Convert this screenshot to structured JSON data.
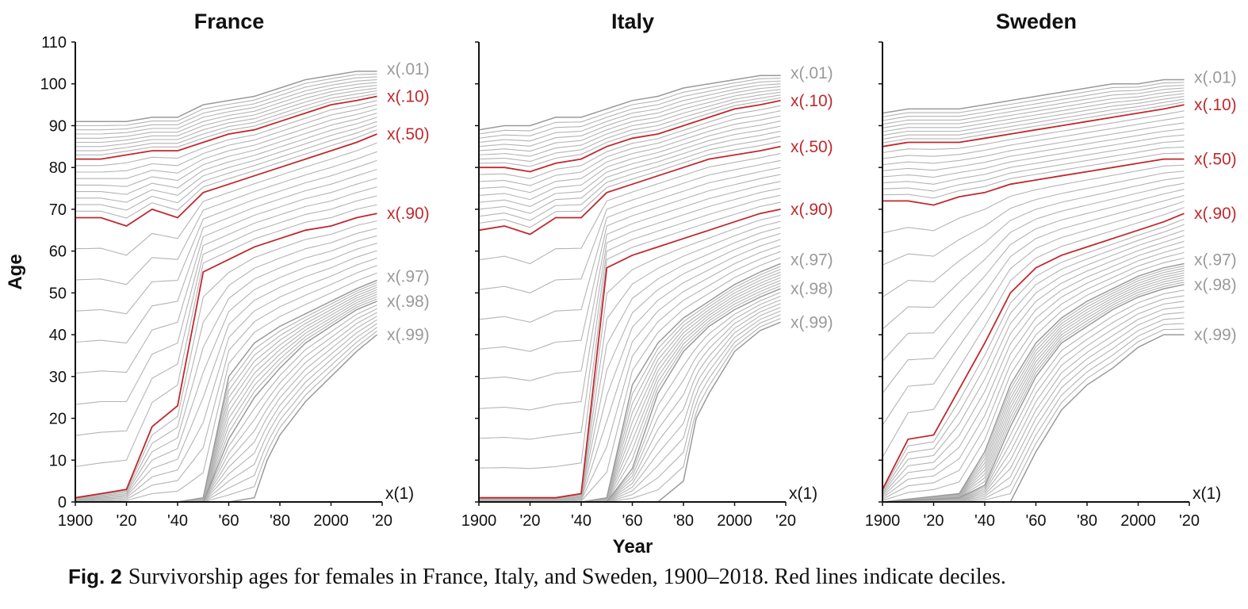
{
  "chart_data": {
    "type": "line",
    "shared": {
      "x_ticks": [
        1900,
        1920,
        1940,
        1960,
        1980,
        2000,
        2020
      ],
      "x_tick_labels": [
        "1900",
        "'20",
        "'40",
        "'60",
        "'80",
        "2000",
        "'20"
      ],
      "y_ticks": [
        0,
        10,
        20,
        30,
        40,
        50,
        60,
        70,
        80,
        90,
        100,
        110
      ],
      "xlim": [
        1900,
        2020
      ],
      "ylim": [
        0,
        110
      ],
      "xlabel": "Year",
      "ylabel": "Age",
      "highlight_color": "#c0282d",
      "base_color": "#9a9a9a"
    },
    "panels": [
      {
        "title": "France",
        "series": [
          {
            "name": "x(.01)",
            "x": [
              1900,
              1910,
              1920,
              1930,
              1940,
              1950,
              1960,
              1970,
              1980,
              1990,
              2000,
              2010,
              2018
            ],
            "y": [
              91,
              91,
              91,
              92,
              92,
              95,
              96,
              97,
              99,
              101,
              102,
              103,
              103
            ]
          },
          {
            "name": "x(.10)",
            "x": [
              1900,
              1910,
              1920,
              1930,
              1940,
              1950,
              1960,
              1970,
              1980,
              1990,
              2000,
              2010,
              2018
            ],
            "y": [
              82,
              82,
              83,
              84,
              84,
              86,
              88,
              89,
              91,
              93,
              95,
              96,
              97
            ]
          },
          {
            "name": "x(.50)",
            "x": [
              1900,
              1910,
              1920,
              1930,
              1940,
              1950,
              1960,
              1970,
              1980,
              1990,
              2000,
              2010,
              2018
            ],
            "y": [
              68,
              68,
              66,
              70,
              68,
              74,
              76,
              78,
              80,
              82,
              84,
              86,
              88
            ]
          },
          {
            "name": "x(.90)",
            "x": [
              1900,
              1910,
              1920,
              1930,
              1940,
              1950,
              1960,
              1970,
              1980,
              1990,
              2000,
              2010,
              2018
            ],
            "y": [
              1,
              2,
              3,
              18,
              23,
              55,
              58,
              61,
              63,
              65,
              66,
              68,
              69
            ]
          },
          {
            "name": "x(.97)",
            "x": [
              1900,
              1920,
              1940,
              1950,
              1960,
              1970,
              1980,
              1990,
              2000,
              2010,
              2018
            ],
            "y": [
              0,
              0,
              0,
              1,
              30,
              38,
              42,
              45,
              48,
              51,
              53
            ]
          },
          {
            "name": "x(.98)",
            "x": [
              1900,
              1940,
              1950,
              1960,
              1970,
              1980,
              1990,
              2000,
              2010,
              2018
            ],
            "y": [
              0,
              0,
              0,
              15,
              25,
              32,
              38,
              42,
              46,
              48
            ]
          },
          {
            "name": "x(.99)",
            "x": [
              1900,
              1960,
              1970,
              1975,
              1980,
              1990,
              2000,
              2010,
              2018
            ],
            "y": [
              0,
              0,
              1,
              10,
              16,
              24,
              30,
              36,
              40
            ]
          },
          {
            "name": "x(1)",
            "x": [
              1900,
              2018
            ],
            "y": [
              0,
              0
            ]
          }
        ]
      },
      {
        "title": "Italy",
        "series": [
          {
            "name": "x(.01)",
            "x": [
              1900,
              1910,
              1920,
              1930,
              1940,
              1950,
              1960,
              1970,
              1980,
              1990,
              2000,
              2010,
              2018
            ],
            "y": [
              89,
              90,
              90,
              92,
              92,
              94,
              96,
              97,
              99,
              100,
              101,
              102,
              102
            ]
          },
          {
            "name": "x(.10)",
            "x": [
              1900,
              1910,
              1920,
              1930,
              1940,
              1950,
              1960,
              1970,
              1980,
              1990,
              2000,
              2010,
              2018
            ],
            "y": [
              80,
              80,
              79,
              81,
              82,
              85,
              87,
              88,
              90,
              92,
              94,
              95,
              96
            ]
          },
          {
            "name": "x(.50)",
            "x": [
              1900,
              1910,
              1920,
              1930,
              1940,
              1950,
              1960,
              1970,
              1980,
              1990,
              2000,
              2010,
              2018
            ],
            "y": [
              65,
              66,
              64,
              68,
              68,
              74,
              76,
              78,
              80,
              82,
              83,
              84,
              85
            ]
          },
          {
            "name": "x(.90)",
            "x": [
              1900,
              1910,
              1920,
              1930,
              1940,
              1950,
              1960,
              1970,
              1980,
              1990,
              2000,
              2010,
              2018
            ],
            "y": [
              1,
              1,
              1,
              1,
              2,
              56,
              59,
              61,
              63,
              65,
              67,
              69,
              70
            ]
          },
          {
            "name": "x(.97)",
            "x": [
              1900,
              1940,
              1950,
              1960,
              1970,
              1980,
              1990,
              2000,
              2010,
              2018
            ],
            "y": [
              0,
              0,
              1,
              28,
              38,
              44,
              48,
              52,
              55,
              57
            ]
          },
          {
            "name": "x(.98)",
            "x": [
              1900,
              1950,
              1960,
              1970,
              1980,
              1990,
              2000,
              2010,
              2018
            ],
            "y": [
              0,
              0,
              8,
              26,
              36,
              42,
              46,
              49,
              51
            ]
          },
          {
            "name": "x(.99)",
            "x": [
              1900,
              1970,
              1980,
              1985,
              1990,
              2000,
              2010,
              2018
            ],
            "y": [
              0,
              0,
              5,
              20,
              26,
              36,
              41,
              43
            ]
          },
          {
            "name": "x(1)",
            "x": [
              1900,
              2018
            ],
            "y": [
              0,
              0
            ]
          }
        ]
      },
      {
        "title": "Sweden",
        "series": [
          {
            "name": "x(.01)",
            "x": [
              1900,
              1910,
              1920,
              1930,
              1940,
              1950,
              1960,
              1970,
              1980,
              1990,
              2000,
              2010,
              2018
            ],
            "y": [
              93,
              94,
              94,
              94,
              95,
              96,
              97,
              98,
              99,
              100,
              100,
              101,
              101
            ]
          },
          {
            "name": "x(.10)",
            "x": [
              1900,
              1910,
              1920,
              1930,
              1940,
              1950,
              1960,
              1970,
              1980,
              1990,
              2000,
              2010,
              2018
            ],
            "y": [
              85,
              86,
              86,
              86,
              87,
              88,
              89,
              90,
              91,
              92,
              93,
              94,
              95
            ]
          },
          {
            "name": "x(.50)",
            "x": [
              1900,
              1910,
              1920,
              1930,
              1940,
              1950,
              1960,
              1970,
              1980,
              1990,
              2000,
              2010,
              2018
            ],
            "y": [
              72,
              72,
              71,
              73,
              74,
              76,
              77,
              78,
              79,
              80,
              81,
              82,
              82
            ]
          },
          {
            "name": "x(.90)",
            "x": [
              1900,
              1910,
              1920,
              1930,
              1940,
              1950,
              1960,
              1970,
              1980,
              1990,
              2000,
              2010,
              2018
            ],
            "y": [
              3,
              15,
              16,
              27,
              38,
              50,
              56,
              59,
              61,
              63,
              65,
              67,
              69
            ]
          },
          {
            "name": "x(.97)",
            "x": [
              1900,
              1930,
              1940,
              1950,
              1960,
              1970,
              1980,
              1990,
              2000,
              2010,
              2018
            ],
            "y": [
              0,
              2,
              12,
              28,
              38,
              44,
              48,
              51,
              54,
              56,
              57
            ]
          },
          {
            "name": "x(.98)",
            "x": [
              1900,
              1930,
              1940,
              1950,
              1960,
              1970,
              1980,
              1990,
              2000,
              2010,
              2018
            ],
            "y": [
              0,
              1,
              4,
              18,
              30,
              38,
              42,
              46,
              49,
              51,
              52
            ]
          },
          {
            "name": "x(.99)",
            "x": [
              1900,
              1950,
              1960,
              1970,
              1980,
              1990,
              2000,
              2010,
              2018
            ],
            "y": [
              0,
              0,
              12,
              22,
              28,
              32,
              37,
              40,
              40
            ]
          },
          {
            "name": "x(1)",
            "x": [
              1900,
              2018
            ],
            "y": [
              0,
              0
            ]
          }
        ]
      }
    ]
  },
  "caption": {
    "fig_num": "Fig. 2",
    "text": "Survivorship ages for females in France, Italy, and Sweden, 1900–2018. Red lines indicate deciles."
  }
}
